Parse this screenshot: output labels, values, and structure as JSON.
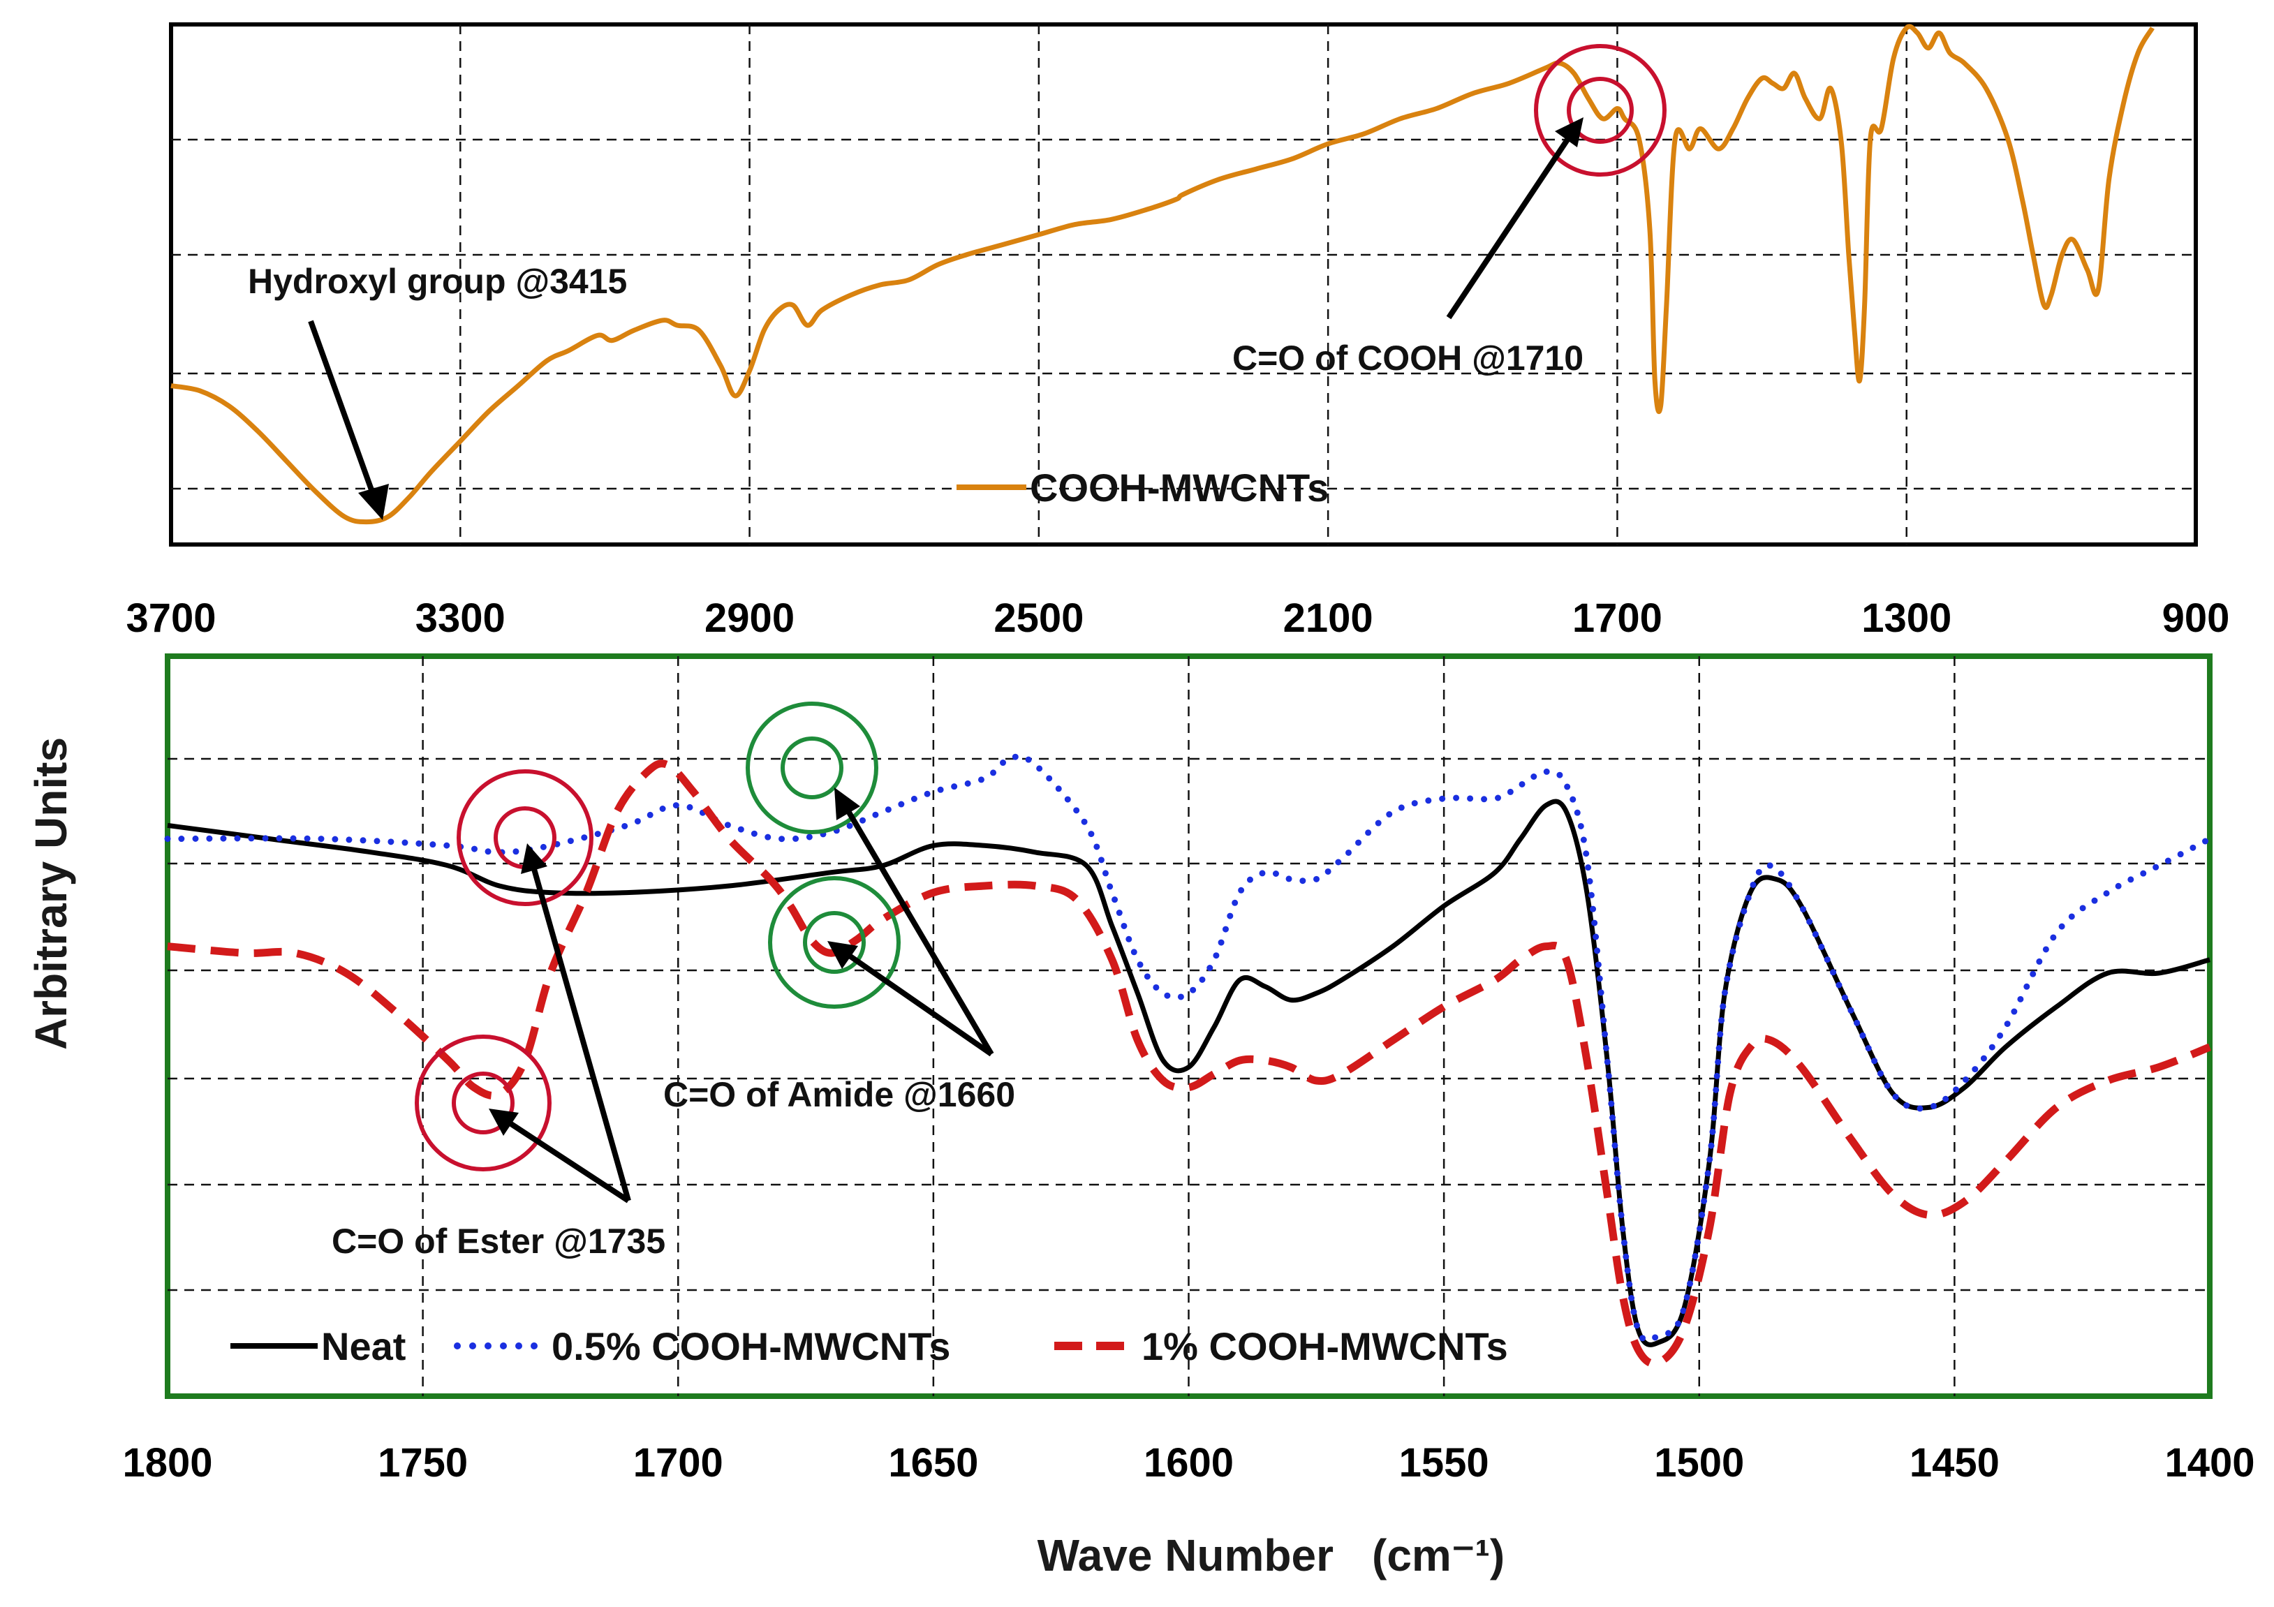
{
  "chart_data": [
    {
      "id": "top",
      "type": "line",
      "xlabel": "",
      "ylabel": "",
      "xlim": [
        3700,
        900
      ],
      "ylim": [
        0,
        100
      ],
      "x_ticks": [
        3700,
        3300,
        2900,
        2500,
        2100,
        1700,
        1300,
        900
      ],
      "grid": true,
      "legend_position": "bottom-center",
      "colors": {
        "frame": "#000000",
        "series": "#D9820F",
        "circle": "#C8102E",
        "arrow": "#000000"
      },
      "series": [
        {
          "name": "COOH-MWCNTs",
          "color": "#D9820F",
          "points": [
            [
              3700,
              29
            ],
            [
              3660,
              28
            ],
            [
              3620,
              25
            ],
            [
              3580,
              20
            ],
            [
              3540,
              14
            ],
            [
              3500,
              8
            ],
            [
              3460,
              3
            ],
            [
              3430,
              2
            ],
            [
              3400,
              3
            ],
            [
              3370,
              7
            ],
            [
              3340,
              12
            ],
            [
              3300,
              18
            ],
            [
              3260,
              24
            ],
            [
              3220,
              29
            ],
            [
              3180,
              34
            ],
            [
              3150,
              36
            ],
            [
              3110,
              39
            ],
            [
              3090,
              38
            ],
            [
              3060,
              40
            ],
            [
              3020,
              42
            ],
            [
              3000,
              41
            ],
            [
              2970,
              40
            ],
            [
              2940,
              33
            ],
            [
              2920,
              27
            ],
            [
              2900,
              32
            ],
            [
              2880,
              40
            ],
            [
              2860,
              44
            ],
            [
              2840,
              45
            ],
            [
              2820,
              41
            ],
            [
              2800,
              44
            ],
            [
              2760,
              47
            ],
            [
              2720,
              49
            ],
            [
              2680,
              50
            ],
            [
              2640,
              53
            ],
            [
              2600,
              55
            ],
            [
              2550,
              57
            ],
            [
              2500,
              59
            ],
            [
              2450,
              61
            ],
            [
              2400,
              62
            ],
            [
              2350,
              64
            ],
            [
              2310,
              66
            ],
            [
              2300,
              67
            ],
            [
              2250,
              70
            ],
            [
              2200,
              72
            ],
            [
              2150,
              74
            ],
            [
              2100,
              77
            ],
            [
              2050,
              79
            ],
            [
              2000,
              82
            ],
            [
              1950,
              84
            ],
            [
              1900,
              87
            ],
            [
              1850,
              89
            ],
            [
              1800,
              92
            ],
            [
              1780,
              93
            ],
            [
              1760,
              91
            ],
            [
              1740,
              86
            ],
            [
              1720,
              82
            ],
            [
              1700,
              84
            ],
            [
              1690,
              82
            ],
            [
              1670,
              78
            ],
            [
              1655,
              60
            ],
            [
              1648,
              30
            ],
            [
              1640,
              25
            ],
            [
              1632,
              45
            ],
            [
              1620,
              78
            ],
            [
              1600,
              76
            ],
            [
              1585,
              80
            ],
            [
              1560,
              76
            ],
            [
              1540,
              80
            ],
            [
              1520,
              86
            ],
            [
              1500,
              90
            ],
            [
              1485,
              89
            ],
            [
              1470,
              88
            ],
            [
              1455,
              91
            ],
            [
              1440,
              86
            ],
            [
              1420,
              82
            ],
            [
              1405,
              88
            ],
            [
              1390,
              77
            ],
            [
              1380,
              55
            ],
            [
              1372,
              40
            ],
            [
              1365,
              30
            ],
            [
              1358,
              45
            ],
            [
              1350,
              78
            ],
            [
              1335,
              80
            ],
            [
              1318,
              94
            ],
            [
              1300,
              100
            ],
            [
              1285,
              99
            ],
            [
              1270,
              96
            ],
            [
              1255,
              99
            ],
            [
              1240,
              95
            ],
            [
              1220,
              93
            ],
            [
              1190,
              88
            ],
            [
              1160,
              78
            ],
            [
              1140,
              66
            ],
            [
              1125,
              55
            ],
            [
              1110,
              45
            ],
            [
              1100,
              47
            ],
            [
              1085,
              55
            ],
            [
              1070,
              58
            ],
            [
              1050,
              52
            ],
            [
              1035,
              48
            ],
            [
              1020,
              70
            ],
            [
              1000,
              85
            ],
            [
              980,
              95
            ],
            [
              960,
              100
            ]
          ]
        }
      ],
      "annotations": [
        {
          "label": "Hydroxyl group @3415",
          "target_x": 3415
        },
        {
          "label": "C=O of COOH @1710",
          "target_x": 1710
        }
      ]
    },
    {
      "id": "bottom",
      "type": "line",
      "xlabel": "Wave Number",
      "xlabel_unit": "(cm⁻¹)",
      "ylabel": "Arbitrary Units",
      "xlim": [
        1800,
        1400
      ],
      "ylim": [
        0,
        100
      ],
      "x_ticks": [
        1800,
        1750,
        1700,
        1650,
        1600,
        1550,
        1500,
        1450,
        1400
      ],
      "grid": true,
      "legend_position": "bottom",
      "colors": {
        "frame": "#1E7B1E",
        "neat": "#000000",
        "half": "#1A2FE0",
        "one": "#D21A1A",
        "amide_circle": "#1E8C3A",
        "ester_circle": "#C8102E"
      },
      "series": [
        {
          "name": "Neat",
          "color": "#000000",
          "style": "solid",
          "points": [
            [
              1800,
              80
            ],
            [
              1780,
              78
            ],
            [
              1760,
              76
            ],
            [
              1745,
              74
            ],
            [
              1735,
              71
            ],
            [
              1725,
              70
            ],
            [
              1710,
              70
            ],
            [
              1690,
              71
            ],
            [
              1670,
              73
            ],
            [
              1660,
              74
            ],
            [
              1650,
              77
            ],
            [
              1640,
              77
            ],
            [
              1630,
              76
            ],
            [
              1620,
              74
            ],
            [
              1615,
              65
            ],
            [
              1610,
              55
            ],
            [
              1605,
              45
            ],
            [
              1600,
              44
            ],
            [
              1595,
              50
            ],
            [
              1590,
              57
            ],
            [
              1585,
              56
            ],
            [
              1580,
              54
            ],
            [
              1575,
              55
            ],
            [
              1570,
              57
            ],
            [
              1560,
              62
            ],
            [
              1550,
              68
            ],
            [
              1540,
              73
            ],
            [
              1535,
              78
            ],
            [
              1530,
              83
            ],
            [
              1526,
              82
            ],
            [
              1522,
              70
            ],
            [
              1518,
              45
            ],
            [
              1515,
              20
            ],
            [
              1512,
              5
            ],
            [
              1508,
              3
            ],
            [
              1503,
              8
            ],
            [
              1498,
              30
            ],
            [
              1495,
              55
            ],
            [
              1490,
              70
            ],
            [
              1485,
              72
            ],
            [
              1480,
              68
            ],
            [
              1470,
              52
            ],
            [
              1462,
              40
            ],
            [
              1455,
              38
            ],
            [
              1448,
              41
            ],
            [
              1440,
              47
            ],
            [
              1430,
              53
            ],
            [
              1420,
              58
            ],
            [
              1410,
              58
            ],
            [
              1400,
              60
            ]
          ]
        },
        {
          "name": "0.5% COOH-MWCNTs",
          "color": "#1A2FE0",
          "style": "dotted",
          "points": [
            [
              1800,
              78
            ],
            [
              1770,
              78
            ],
            [
              1745,
              77
            ],
            [
              1735,
              76
            ],
            [
              1725,
              77
            ],
            [
              1710,
              80
            ],
            [
              1700,
              83
            ],
            [
              1690,
              80
            ],
            [
              1680,
              78
            ],
            [
              1670,
              79
            ],
            [
              1660,
              82
            ],
            [
              1650,
              85
            ],
            [
              1640,
              87
            ],
            [
              1635,
              90
            ],
            [
              1630,
              89
            ],
            [
              1620,
              80
            ],
            [
              1615,
              70
            ],
            [
              1610,
              60
            ],
            [
              1605,
              55
            ],
            [
              1600,
              55
            ],
            [
              1595,
              60
            ],
            [
              1590,
              70
            ],
            [
              1585,
              73
            ],
            [
              1580,
              72
            ],
            [
              1575,
              72
            ],
            [
              1570,
              75
            ],
            [
              1560,
              82
            ],
            [
              1550,
              84
            ],
            [
              1540,
              84
            ],
            [
              1535,
              86
            ],
            [
              1530,
              88
            ],
            [
              1526,
              86
            ],
            [
              1522,
              75
            ],
            [
              1518,
              45
            ],
            [
              1515,
              20
            ],
            [
              1512,
              5
            ],
            [
              1508,
              4
            ],
            [
              1503,
              8
            ],
            [
              1498,
              30
            ],
            [
              1495,
              55
            ],
            [
              1490,
              70
            ],
            [
              1486,
              74
            ],
            [
              1480,
              68
            ],
            [
              1470,
              52
            ],
            [
              1462,
              40
            ],
            [
              1455,
              38
            ],
            [
              1448,
              42
            ],
            [
              1440,
              50
            ],
            [
              1430,
              64
            ],
            [
              1420,
              70
            ],
            [
              1410,
              74
            ],
            [
              1400,
              78
            ]
          ]
        },
        {
          "name": "1% COOH-MWCNTs",
          "color": "#D21A1A",
          "style": "dashed",
          "points": [
            [
              1800,
              62
            ],
            [
              1785,
              61
            ],
            [
              1775,
              61
            ],
            [
              1765,
              58
            ],
            [
              1755,
              52
            ],
            [
              1745,
              45
            ],
            [
              1740,
              41
            ],
            [
              1735,
              40
            ],
            [
              1730,
              45
            ],
            [
              1725,
              58
            ],
            [
              1718,
              70
            ],
            [
              1712,
              82
            ],
            [
              1706,
              88
            ],
            [
              1702,
              89
            ],
            [
              1697,
              85
            ],
            [
              1690,
              78
            ],
            [
              1682,
              72
            ],
            [
              1678,
              68
            ],
            [
              1674,
              63
            ],
            [
              1670,
              61
            ],
            [
              1665,
              63
            ],
            [
              1660,
              66
            ],
            [
              1650,
              70
            ],
            [
              1640,
              71
            ],
            [
              1630,
              71
            ],
            [
              1622,
              69
            ],
            [
              1615,
              60
            ],
            [
              1610,
              48
            ],
            [
              1605,
              42
            ],
            [
              1600,
              41
            ],
            [
              1595,
              43
            ],
            [
              1590,
              45
            ],
            [
              1585,
              45
            ],
            [
              1580,
              44
            ],
            [
              1575,
              42
            ],
            [
              1570,
              43
            ],
            [
              1560,
              48
            ],
            [
              1550,
              53
            ],
            [
              1540,
              57
            ],
            [
              1535,
              60
            ],
            [
              1530,
              62
            ],
            [
              1526,
              60
            ],
            [
              1522,
              45
            ],
            [
              1518,
              25
            ],
            [
              1515,
              10
            ],
            [
              1512,
              2
            ],
            [
              1508,
              0
            ],
            [
              1503,
              5
            ],
            [
              1498,
              20
            ],
            [
              1494,
              40
            ],
            [
              1490,
              47
            ],
            [
              1486,
              48
            ],
            [
              1480,
              44
            ],
            [
              1470,
              33
            ],
            [
              1462,
              25
            ],
            [
              1455,
              22
            ],
            [
              1448,
              24
            ],
            [
              1440,
              30
            ],
            [
              1430,
              38
            ],
            [
              1420,
              42
            ],
            [
              1410,
              44
            ],
            [
              1400,
              47
            ]
          ]
        }
      ],
      "annotations": [
        {
          "label": "C=O of Amide @1660",
          "target_x": 1660
        },
        {
          "label": "C=O of Ester @1735",
          "target_x": 1735
        }
      ]
    }
  ]
}
